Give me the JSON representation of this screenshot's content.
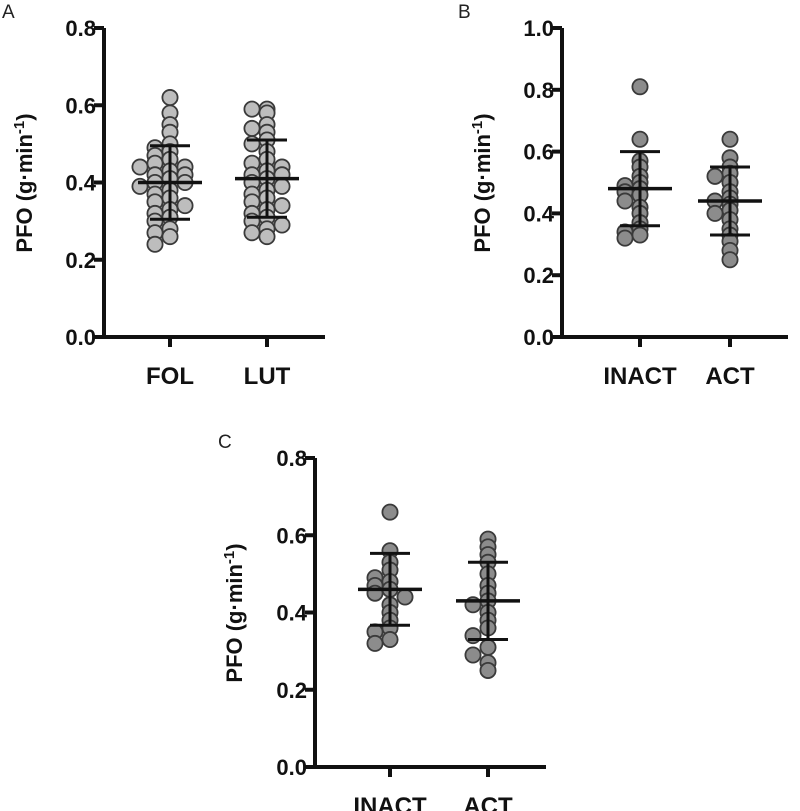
{
  "chart_data": [
    {
      "panel": "A",
      "type": "scatter",
      "ylabel": {
        "main": "PFO (g·min",
        "sup": "-1",
        "close": ")"
      },
      "ylim": [
        0,
        0.8
      ],
      "yticks": [
        0.0,
        0.2,
        0.4,
        0.6,
        0.8
      ],
      "ytick_labels": [
        "0.0",
        "0.2",
        "0.4",
        "0.6",
        "0.8"
      ],
      "categories": [
        "FOL",
        "LUT"
      ],
      "point_color": "#bdbdbd",
      "groups": [
        {
          "name": "FOL",
          "mean": 0.4,
          "sd": 0.095,
          "values": [
            0.62,
            0.58,
            0.55,
            0.53,
            0.5,
            0.49,
            0.48,
            0.47,
            0.46,
            0.45,
            0.44,
            0.44,
            0.43,
            0.42,
            0.42,
            0.41,
            0.4,
            0.4,
            0.39,
            0.38,
            0.37,
            0.36,
            0.35,
            0.34,
            0.33,
            0.32,
            0.31,
            0.3,
            0.28,
            0.27,
            0.26,
            0.24
          ]
        },
        {
          "name": "LUT",
          "mean": 0.41,
          "sd": 0.1,
          "values": [
            0.59,
            0.59,
            0.58,
            0.55,
            0.54,
            0.53,
            0.51,
            0.5,
            0.48,
            0.46,
            0.45,
            0.44,
            0.43,
            0.42,
            0.42,
            0.41,
            0.4,
            0.39,
            0.38,
            0.37,
            0.36,
            0.35,
            0.34,
            0.33,
            0.32,
            0.31,
            0.3,
            0.29,
            0.28,
            0.27,
            0.26
          ]
        }
      ]
    },
    {
      "panel": "B",
      "type": "scatter",
      "ylabel": {
        "main": "PFO (g·min",
        "sup": "-1",
        "close": ")"
      },
      "ylim": [
        0,
        1.0
      ],
      "yticks": [
        0.0,
        0.2,
        0.4,
        0.6,
        0.8,
        1.0
      ],
      "ytick_labels": [
        "0.0",
        "0.2",
        "0.4",
        "0.6",
        "0.8",
        "1.0"
      ],
      "categories": [
        "INACT",
        "ACT"
      ],
      "point_color": "#8c8c8c",
      "groups": [
        {
          "name": "INACT",
          "mean": 0.48,
          "sd": 0.12,
          "values": [
            0.81,
            0.64,
            0.57,
            0.55,
            0.52,
            0.5,
            0.49,
            0.48,
            0.47,
            0.46,
            0.44,
            0.42,
            0.4,
            0.37,
            0.35,
            0.34,
            0.33,
            0.32
          ]
        },
        {
          "name": "ACT",
          "mean": 0.44,
          "sd": 0.11,
          "values": [
            0.64,
            0.58,
            0.55,
            0.53,
            0.52,
            0.5,
            0.47,
            0.45,
            0.44,
            0.43,
            0.41,
            0.4,
            0.38,
            0.35,
            0.33,
            0.31,
            0.28,
            0.25
          ]
        }
      ]
    },
    {
      "panel": "C",
      "type": "scatter",
      "ylabel": {
        "main": "PFO (g·min",
        "sup": "-1",
        "close": ")"
      },
      "ylim": [
        0,
        0.8
      ],
      "yticks": [
        0.0,
        0.2,
        0.4,
        0.6,
        0.8
      ],
      "ytick_labels": [
        "0.0",
        "0.2",
        "0.4",
        "0.6",
        "0.8"
      ],
      "categories": [
        "INACT",
        "ACT"
      ],
      "point_color": "#8c8c8c",
      "groups": [
        {
          "name": "INACT",
          "mean": 0.46,
          "sd": 0.093,
          "values": [
            0.66,
            0.56,
            0.53,
            0.51,
            0.49,
            0.48,
            0.47,
            0.46,
            0.45,
            0.44,
            0.42,
            0.4,
            0.38,
            0.36,
            0.35,
            0.33,
            0.32
          ]
        },
        {
          "name": "ACT",
          "mean": 0.43,
          "sd": 0.1,
          "values": [
            0.59,
            0.57,
            0.55,
            0.53,
            0.5,
            0.47,
            0.45,
            0.43,
            0.42,
            0.4,
            0.38,
            0.36,
            0.34,
            0.31,
            0.29,
            0.27,
            0.25
          ]
        }
      ]
    }
  ]
}
